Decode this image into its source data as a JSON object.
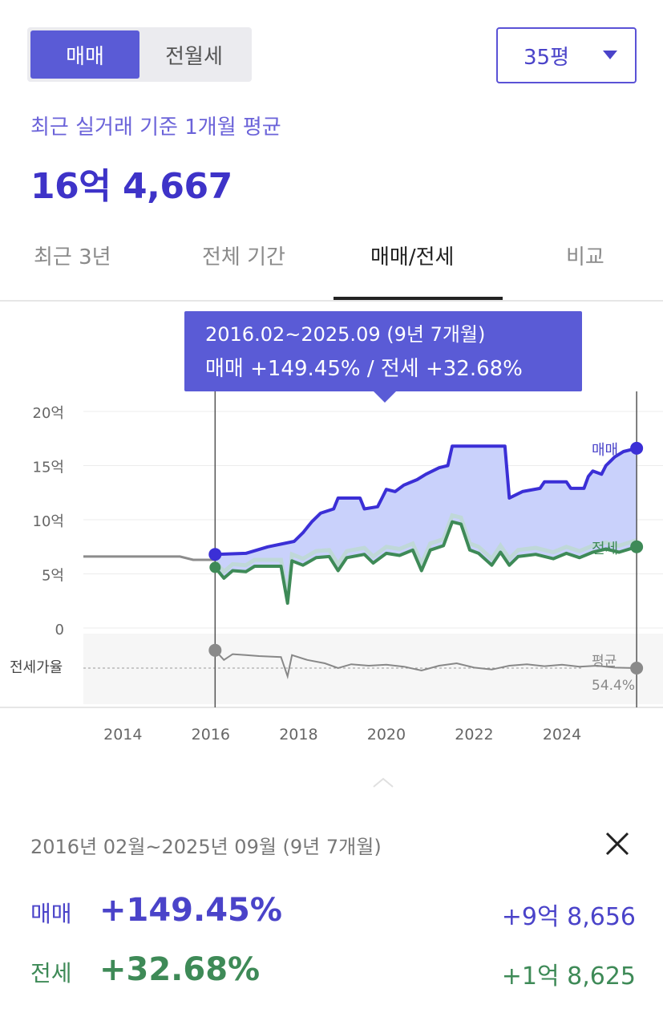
{
  "trade_toggle": {
    "options": [
      "매매",
      "전월세"
    ],
    "selected": 0
  },
  "area_select": {
    "value": "35평"
  },
  "summary": {
    "subtitle": "최근 실거래 기준 1개월 평균",
    "price": "16억 4,667"
  },
  "tabs": [
    {
      "label": "최근 3년",
      "active": false
    },
    {
      "label": "전체 기간",
      "active": false
    },
    {
      "label": "매매/전세",
      "active": true
    },
    {
      "label": "비교",
      "active": false
    }
  ],
  "tooltip": {
    "line1": "2016.02~2025.09 (9년 7개월)",
    "line2": "매매 +149.45%  /  전세 +32.68%"
  },
  "chart_data": {
    "type": "area",
    "x_tick_labels": [
      "2014",
      "2016",
      "2018",
      "2020",
      "2022",
      "2024"
    ],
    "y_tick_labels": [
      "20억",
      "15억",
      "10억",
      "5억",
      "0"
    ],
    "y_ticks": [
      20,
      15,
      10,
      5,
      0
    ],
    "ylim": [
      0,
      20
    ],
    "xlim": [
      2013.1,
      2026.3
    ],
    "series_labels": {
      "sale": "매매",
      "jeonse": "전세",
      "ratio": "전세가율",
      "ratio_avg": "평균",
      "ratio_avg_value": "54.4%"
    },
    "selection": {
      "start": 2016.1,
      "end": 2025.7
    },
    "colors": {
      "sale": "#3b2fd6",
      "sale_fill": "#c9d1fb",
      "jeonse": "#3e8a57",
      "jeonse_bg": "#b9dcc2",
      "pre": "#8c8c8c",
      "ratio": "#888888"
    },
    "series": [
      {
        "key": "pre_period",
        "points": [
          [
            2013.1,
            6.6
          ],
          [
            2014,
            6.6
          ],
          [
            2015.3,
            6.6
          ],
          [
            2015.6,
            6.3
          ],
          [
            2016.1,
            6.3
          ]
        ]
      },
      {
        "key": "sale",
        "points": [
          [
            2016.1,
            6.8
          ],
          [
            2016.8,
            6.9
          ],
          [
            2017.3,
            7.5
          ],
          [
            2017.9,
            8.0
          ],
          [
            2018.1,
            8.8
          ],
          [
            2018.3,
            9.8
          ],
          [
            2018.5,
            10.6
          ],
          [
            2018.8,
            11.0
          ],
          [
            2018.9,
            12.0
          ],
          [
            2019.4,
            12.0
          ],
          [
            2019.5,
            11.0
          ],
          [
            2019.8,
            11.2
          ],
          [
            2019.9,
            12.0
          ],
          [
            2020.0,
            12.8
          ],
          [
            2020.2,
            12.6
          ],
          [
            2020.4,
            13.2
          ],
          [
            2020.7,
            13.7
          ],
          [
            2020.9,
            14.2
          ],
          [
            2021.2,
            14.8
          ],
          [
            2021.4,
            15.0
          ],
          [
            2021.5,
            16.8
          ],
          [
            2022.7,
            16.8
          ],
          [
            2022.8,
            12.0
          ],
          [
            2023.1,
            12.6
          ],
          [
            2023.5,
            12.9
          ],
          [
            2023.6,
            13.5
          ],
          [
            2024.1,
            13.5
          ],
          [
            2024.2,
            12.9
          ],
          [
            2024.5,
            12.9
          ],
          [
            2024.6,
            14.0
          ],
          [
            2024.7,
            14.5
          ],
          [
            2024.9,
            14.2
          ],
          [
            2025.0,
            15.0
          ],
          [
            2025.2,
            15.8
          ],
          [
            2025.4,
            16.3
          ],
          [
            2025.7,
            16.6
          ]
        ]
      },
      {
        "key": "jeonse",
        "points": [
          [
            2016.1,
            5.6
          ],
          [
            2016.3,
            4.6
          ],
          [
            2016.5,
            5.3
          ],
          [
            2016.8,
            5.2
          ],
          [
            2017.0,
            5.7
          ],
          [
            2017.6,
            5.7
          ],
          [
            2017.75,
            2.3
          ],
          [
            2017.85,
            6.2
          ],
          [
            2018.1,
            5.8
          ],
          [
            2018.4,
            6.5
          ],
          [
            2018.7,
            6.6
          ],
          [
            2018.9,
            5.3
          ],
          [
            2019.1,
            6.5
          ],
          [
            2019.5,
            6.8
          ],
          [
            2019.7,
            6.0
          ],
          [
            2020.0,
            6.9
          ],
          [
            2020.3,
            6.7
          ],
          [
            2020.6,
            7.2
          ],
          [
            2020.8,
            5.3
          ],
          [
            2021.0,
            7.2
          ],
          [
            2021.3,
            7.6
          ],
          [
            2021.5,
            9.8
          ],
          [
            2021.7,
            9.6
          ],
          [
            2021.9,
            7.2
          ],
          [
            2022.1,
            6.9
          ],
          [
            2022.4,
            5.8
          ],
          [
            2022.6,
            7.0
          ],
          [
            2022.8,
            5.8
          ],
          [
            2023.0,
            6.6
          ],
          [
            2023.4,
            6.8
          ],
          [
            2023.8,
            6.4
          ],
          [
            2024.1,
            6.9
          ],
          [
            2024.4,
            6.5
          ],
          [
            2024.7,
            7.0
          ],
          [
            2025.0,
            7.3
          ],
          [
            2025.3,
            7.0
          ],
          [
            2025.7,
            7.5
          ]
        ]
      },
      {
        "key": "ratio",
        "points": [
          [
            2016.1,
            0.82
          ],
          [
            2016.3,
            0.62
          ],
          [
            2016.5,
            0.74
          ],
          [
            2016.8,
            0.72
          ],
          [
            2017.1,
            0.7
          ],
          [
            2017.6,
            0.68
          ],
          [
            2017.75,
            0.28
          ],
          [
            2017.85,
            0.72
          ],
          [
            2018.2,
            0.62
          ],
          [
            2018.6,
            0.55
          ],
          [
            2018.9,
            0.45
          ],
          [
            2019.2,
            0.53
          ],
          [
            2019.6,
            0.5
          ],
          [
            2020.0,
            0.52
          ],
          [
            2020.4,
            0.48
          ],
          [
            2020.8,
            0.4
          ],
          [
            2021.2,
            0.5
          ],
          [
            2021.6,
            0.55
          ],
          [
            2022.0,
            0.46
          ],
          [
            2022.4,
            0.42
          ],
          [
            2022.8,
            0.5
          ],
          [
            2023.2,
            0.53
          ],
          [
            2023.6,
            0.49
          ],
          [
            2024.0,
            0.52
          ],
          [
            2024.4,
            0.48
          ],
          [
            2024.8,
            0.5
          ],
          [
            2025.2,
            0.46
          ],
          [
            2025.7,
            0.45
          ]
        ]
      }
    ]
  },
  "detail": {
    "range": "2016년 02월~2025년 09월 (9년 7개월)",
    "sale": {
      "label": "매매",
      "percent": "+149.45%",
      "amount": "+9억 8,656"
    },
    "jeonse": {
      "label": "전세",
      "percent": "+32.68%",
      "amount": "+1억 8,625"
    }
  }
}
